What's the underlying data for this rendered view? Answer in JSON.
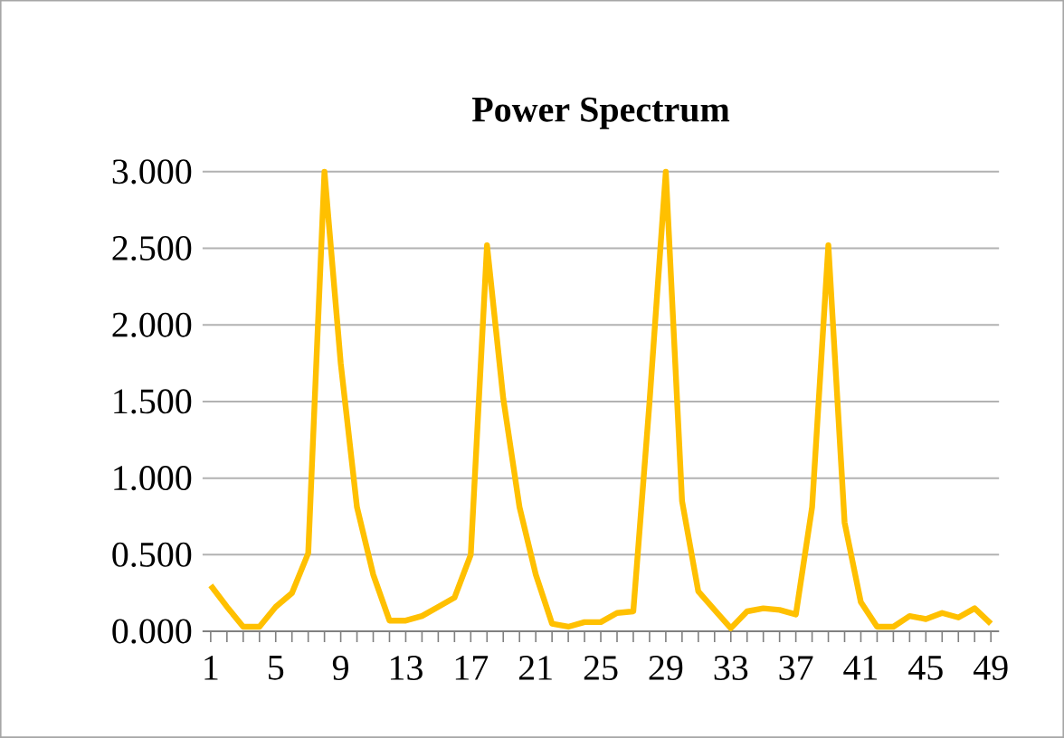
{
  "chart_data": {
    "type": "line",
    "title": "Power Spectrum",
    "categories": [
      "1",
      null,
      null,
      null,
      "5",
      null,
      null,
      null,
      "9",
      null,
      null,
      null,
      "13",
      null,
      null,
      null,
      "17",
      null,
      null,
      null,
      "21",
      null,
      null,
      null,
      "25",
      null,
      null,
      null,
      "29",
      null,
      null,
      null,
      "33",
      null,
      null,
      null,
      "37",
      null,
      null,
      null,
      "41",
      null,
      null,
      null,
      "45",
      null,
      null,
      null,
      "49"
    ],
    "series": [
      {
        "color": "#ffc000",
        "values": [
          0.3,
          0.16,
          0.03,
          0.03,
          0.16,
          0.25,
          0.51,
          3.0,
          1.75,
          0.81,
          0.37,
          0.07,
          0.07,
          0.1,
          0.16,
          0.22,
          0.5,
          2.52,
          1.52,
          0.81,
          0.37,
          0.05,
          0.03,
          0.06,
          0.06,
          0.12,
          0.13,
          1.5,
          3.0,
          0.85,
          0.26,
          0.14,
          0.02,
          0.13,
          0.15,
          0.14,
          0.11,
          0.81,
          2.52,
          0.71,
          0.19,
          0.03,
          0.03,
          0.1,
          0.08,
          0.12,
          0.09,
          0.15,
          0.05
        ]
      }
    ],
    "ylim": [
      0,
      3
    ],
    "yticks": [
      {
        "value": 0,
        "label": "0.000"
      },
      {
        "value": 0.5,
        "label": "0.500"
      },
      {
        "value": 1,
        "label": "1.000"
      },
      {
        "value": 1.5,
        "label": "1.500"
      },
      {
        "value": 2,
        "label": "2.000"
      },
      {
        "value": 2.5,
        "label": "2.500"
      },
      {
        "value": 3,
        "label": "3.000"
      }
    ],
    "grid": "y",
    "marker": "none",
    "line_style": "solid"
  }
}
